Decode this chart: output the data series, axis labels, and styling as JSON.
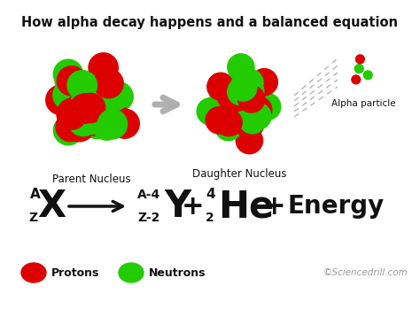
{
  "title": "How alpha decay happens and a balanced equation",
  "title_fontsize": 10.5,
  "bg_color": "#ffffff",
  "red": "#dd0000",
  "green": "#22cc00",
  "gray": "#b0b0b0",
  "dark": "#111111",
  "label_parent": "Parent Nucleus",
  "label_daughter": "Daughter Nucleus",
  "label_alpha": "Alpha particle",
  "label_protons": "Protons",
  "label_neutrons": "Neutrons",
  "label_copyright": "©Sciencedrill.com",
  "eq_x_super": "A",
  "eq_x_sub": "Z",
  "eq_x_elem": "X",
  "eq_y_super": "A-4",
  "eq_y_sub": "Z-2",
  "eq_y_elem": "Y",
  "eq_he_super": "4",
  "eq_he_sub": "2",
  "eq_he_elem": "He",
  "eq_energy": "Energy",
  "fig_w": 4.74,
  "fig_h": 3.49,
  "dpi": 100
}
